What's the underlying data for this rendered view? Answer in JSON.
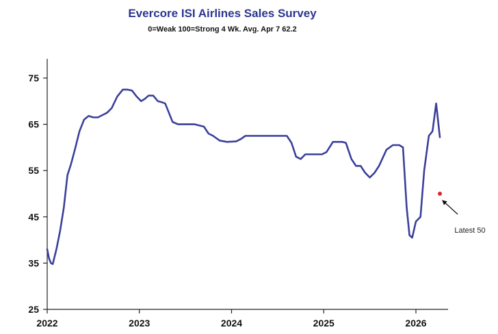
{
  "chart_data": {
    "type": "line",
    "title": "Evercore ISI Airlines Sales Survey",
    "subtitle": "0=Weak 100=Strong  4 Wk. Avg.  Apr 7  62.2",
    "xlabel": "",
    "ylabel": "",
    "xlim": [
      2022.0,
      2026.45
    ],
    "ylim": [
      25,
      80
    ],
    "x_ticks": [
      2022,
      2023,
      2024,
      2025,
      2026
    ],
    "y_ticks": [
      25,
      35,
      45,
      55,
      65,
      75
    ],
    "grid": false,
    "series": [
      {
        "name": "",
        "color": "#3a3f9a",
        "x": [
          2022.0,
          2022.02,
          2022.04,
          2022.06,
          2022.1,
          2022.14,
          2022.18,
          2022.22,
          2022.26,
          2022.3,
          2022.35,
          2022.4,
          2022.45,
          2022.5,
          2022.55,
          2022.6,
          2022.65,
          2022.7,
          2022.76,
          2022.82,
          2022.87,
          2022.92,
          2022.97,
          2023.02,
          2023.06,
          2023.1,
          2023.15,
          2023.2,
          2023.24,
          2023.28,
          2023.32,
          2023.36,
          2023.42,
          2023.5,
          2023.6,
          2023.7,
          2023.75,
          2023.8,
          2023.87,
          2023.95,
          2024.05,
          2024.1,
          2024.15,
          2024.3,
          2024.5,
          2024.6,
          2024.65,
          2024.7,
          2024.75,
          2024.8,
          2024.9,
          2024.98,
          2025.03,
          2025.1,
          2025.16,
          2025.2,
          2025.24,
          2025.3,
          2025.35,
          2025.4,
          2025.45,
          2025.5,
          2025.55,
          2025.6,
          2025.68,
          2025.75,
          2025.78,
          2025.82,
          2025.86,
          2025.9,
          2025.93,
          2025.96,
          2026.0,
          2026.05,
          2026.09,
          2026.14,
          2026.18,
          2026.22,
          2026.26
        ],
        "values": [
          38,
          36,
          35,
          34.8,
          38,
          42,
          47,
          54,
          56.5,
          59.5,
          63.5,
          66,
          66.8,
          66.5,
          66.5,
          67,
          67.5,
          68.5,
          71,
          72.5,
          72.5,
          72.3,
          71,
          70,
          70.5,
          71.2,
          71.2,
          70,
          69.8,
          69.5,
          67.5,
          65.5,
          65,
          65,
          65,
          64.5,
          63,
          62.5,
          61.5,
          61.2,
          61.3,
          61.8,
          62.5,
          62.5,
          62.5,
          62.5,
          61,
          58,
          57.5,
          58.5,
          58.5,
          58.5,
          59,
          61.2,
          61.2,
          61.2,
          61,
          57.5,
          56,
          56,
          54.5,
          53.5,
          54.5,
          56,
          59.5,
          60.5,
          60.5,
          60.5,
          60,
          47,
          41,
          40.5,
          44,
          45,
          55,
          62.5,
          63.5,
          69.5,
          62.2
        ]
      }
    ],
    "annotations": [
      {
        "text": "Latest 50",
        "point_x": 2026.26,
        "point_y": 50,
        "marker_color": "#e0222d"
      }
    ]
  }
}
